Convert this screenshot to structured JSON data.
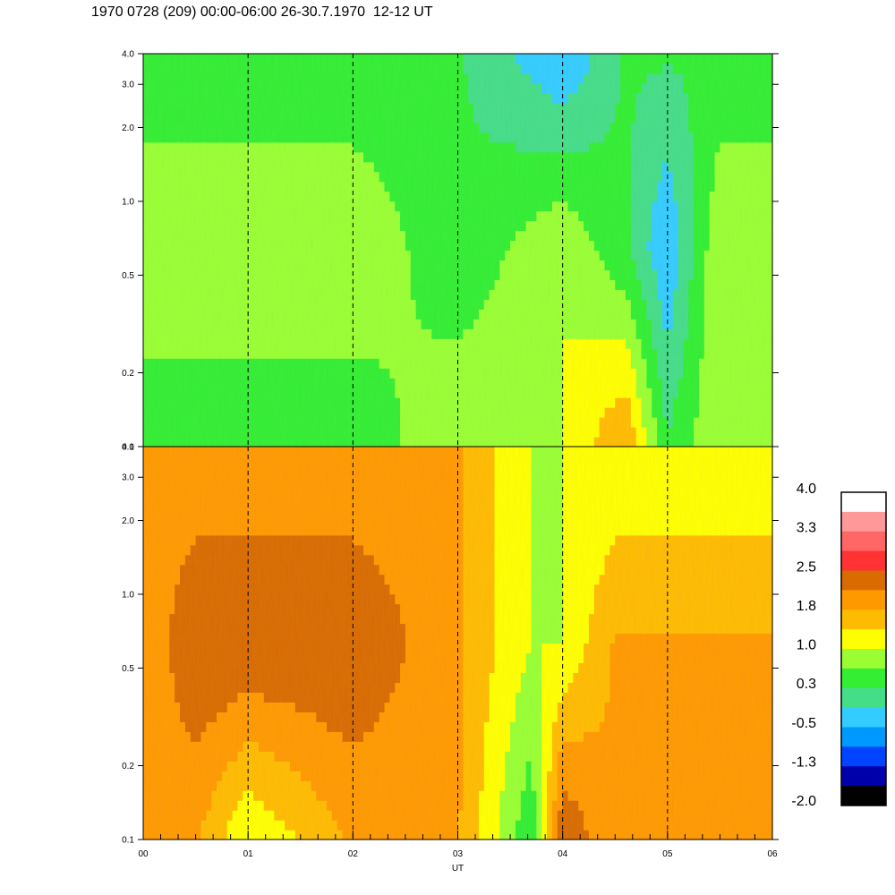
{
  "title": "1970 0728 (209) 00:00-06:00 26-30.7.1970  12-12 UT",
  "chart_data": {
    "type": "heatmap",
    "xlabel": "UT",
    "x_ticks": [
      "00",
      "01",
      "02",
      "03",
      "04",
      "05",
      "06"
    ],
    "x_range": [
      0,
      6
    ],
    "y_scale": "log",
    "y_range": [
      0.1,
      4.0
    ],
    "y_ticks": [
      "0.1",
      "0.2",
      "0.5",
      "1.0",
      "2.0",
      "3.0",
      "4.0"
    ],
    "panels": [
      {
        "name": "upper",
        "dominant_levels_by_time": [
          {
            "t": 0.0,
            "low_freq": 0.3,
            "mid_freq": 1.0,
            "high_freq": 0.3
          },
          {
            "t": 0.5,
            "low_freq": 0.3,
            "mid_freq": 1.0,
            "high_freq": 0.3
          },
          {
            "t": 1.0,
            "low_freq": 0.3,
            "mid_freq": 1.0,
            "high_freq": 0.3
          },
          {
            "t": 2.0,
            "low_freq": 0.3,
            "mid_freq": 1.0,
            "high_freq": 0.3
          },
          {
            "t": 3.0,
            "low_freq": 1.0,
            "mid_freq": 0.3,
            "high_freq": 0.3
          },
          {
            "t": 4.0,
            "low_freq": 1.0,
            "mid_freq": 1.0,
            "high_freq": -0.5
          },
          {
            "t": 4.6,
            "low_freq": 1.8,
            "mid_freq": 0.3,
            "high_freq": 0.3
          },
          {
            "t": 5.0,
            "low_freq": 0.3,
            "mid_freq": -0.5,
            "high_freq": 0.3
          },
          {
            "t": 5.5,
            "low_freq": 1.0,
            "mid_freq": 1.0,
            "high_freq": 0.3
          }
        ]
      },
      {
        "name": "lower",
        "dominant_levels_by_time": [
          {
            "t": 0.0,
            "low_freq": 1.8,
            "mid_freq": 1.8,
            "high_freq": 1.8
          },
          {
            "t": 0.5,
            "low_freq": 1.8,
            "mid_freq": 2.5,
            "high_freq": 1.8
          },
          {
            "t": 1.0,
            "low_freq": 1.0,
            "mid_freq": 2.5,
            "high_freq": 1.8
          },
          {
            "t": 2.0,
            "low_freq": 1.8,
            "mid_freq": 2.5,
            "high_freq": 1.8
          },
          {
            "t": 3.0,
            "low_freq": 1.8,
            "mid_freq": 1.8,
            "high_freq": 1.8
          },
          {
            "t": 3.7,
            "low_freq": 0.3,
            "mid_freq": 1.0,
            "high_freq": 1.0
          },
          {
            "t": 4.0,
            "low_freq": 2.5,
            "mid_freq": 1.0,
            "high_freq": 1.0
          },
          {
            "t": 4.5,
            "low_freq": 1.8,
            "mid_freq": 1.8,
            "high_freq": 1.0
          },
          {
            "t": 5.0,
            "low_freq": 1.8,
            "mid_freq": 1.8,
            "high_freq": 1.0
          },
          {
            "t": 6.0,
            "low_freq": 1.8,
            "mid_freq": 1.8,
            "high_freq": 1.0
          }
        ]
      }
    ],
    "colorbar": {
      "labels": [
        "4.0",
        "3.3",
        "2.5",
        "1.8",
        "1.0",
        "0.3",
        "-0.5",
        "-1.3",
        "-2.0"
      ],
      "colors_top_to_bottom": [
        "#ffffff",
        "#ff9999",
        "#ff6666",
        "#ff3333",
        "#d96b00",
        "#ff9900",
        "#ffbb00",
        "#ffff00",
        "#99ff33",
        "#33ee33",
        "#44dd88",
        "#33ccff",
        "#0099ff",
        "#0044ff",
        "#0000aa",
        "#000000"
      ]
    },
    "grid": "dashed vertical lines at each hour"
  }
}
